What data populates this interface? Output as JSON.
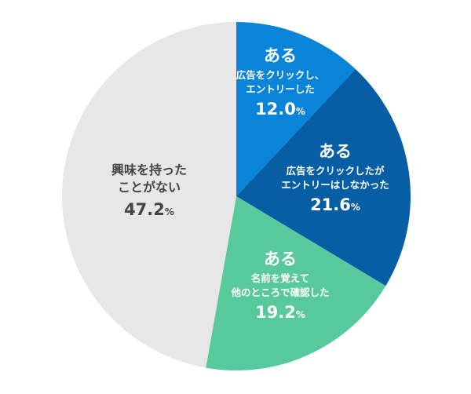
{
  "chart_data": {
    "type": "pie",
    "start_angle_deg": 0,
    "direction": "clockwise",
    "slices": [
      {
        "heading": "ある",
        "lines": [
          "広告をクリックし、",
          "エントリーした"
        ],
        "value": 12.0,
        "value_text": "12.0",
        "unit": "%",
        "color": "#0a84d8",
        "text_color": "#ffffff"
      },
      {
        "heading": "ある",
        "lines": [
          "広告をクリックしたが",
          "エントリーはしなかった"
        ],
        "value": 21.6,
        "value_text": "21.6",
        "unit": "%",
        "color": "#075ea5",
        "text_color": "#ffffff"
      },
      {
        "heading": "ある",
        "lines": [
          "名前を覚えて",
          "他のところで確認した"
        ],
        "value": 19.2,
        "value_text": "19.2",
        "unit": "%",
        "color": "#58c99d",
        "text_color": "#ffffff"
      },
      {
        "heading": "",
        "lines": [
          "興味を持った",
          "ことがない"
        ],
        "value": 47.2,
        "value_text": "47.2",
        "unit": "%",
        "color": "#e7e7e7",
        "text_color": "#444444"
      }
    ]
  }
}
